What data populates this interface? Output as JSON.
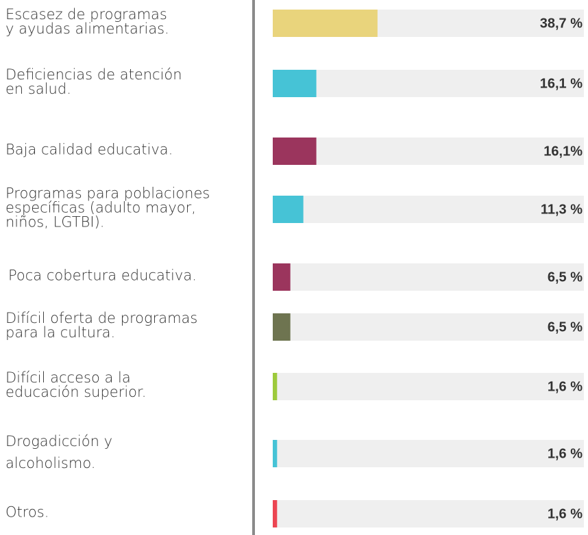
{
  "chart_data": {
    "type": "bar",
    "orientation": "horizontal",
    "categories": [
      "Escasez de programas\ny ayudas alimentarias.",
      "Deficiencias de atención\nen salud.",
      "Baja calidad educativa.",
      "Programas para poblaciones\nespecíficas (adulto mayor,\nniños, LGTBI).",
      "Poca cobertura educativa.",
      "Difícil oferta de programas\npara la cultura.",
      "Difícil acceso a la\neducación superior.",
      "Drogadicción y\nalcoholismo.",
      "Otros."
    ],
    "values": [
      38.7,
      16.1,
      16.1,
      11.3,
      6.5,
      6.5,
      1.6,
      1.6,
      1.6
    ],
    "value_labels": [
      "38,7 %",
      "16,1 %",
      "16,1%",
      "11,3 %",
      "6,5 %",
      "6,5 %",
      "1,6 %",
      "1,6 %",
      "1,6 %"
    ],
    "colors": [
      "#e9d47c",
      "#46c3d6",
      "#9b355d",
      "#46c3d6",
      "#9b355d",
      "#6e7450",
      "#9dca3c",
      "#46c3d6",
      "#ec4552"
    ],
    "xlim": [
      0,
      100
    ]
  }
}
